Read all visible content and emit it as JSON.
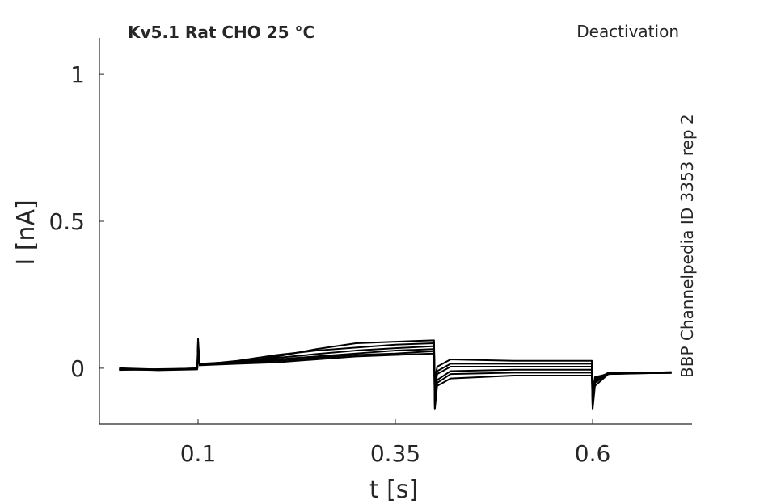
{
  "chart_data": {
    "type": "line",
    "title": "Kv5.1  Rat  CHO  25 °C",
    "annotation": "Deactivation",
    "side_label": "BBP Channelpedia ID 3353 rep 2",
    "x_label": "t [s]",
    "y_label": "I [nA]",
    "xlim": [
      -0.025,
      0.726
    ],
    "ylim": [
      -0.19,
      1.124
    ],
    "xticks": [
      0.1,
      0.35,
      0.6
    ],
    "yticks": [
      0,
      0.5,
      1
    ],
    "grid": false,
    "x": [
      0,
      0.05,
      0.099,
      0.1,
      0.102,
      0.15,
      0.2,
      0.25,
      0.3,
      0.35,
      0.399,
      0.4,
      0.403,
      0.42,
      0.5,
      0.599,
      0.6,
      0.603,
      0.62,
      0.7
    ],
    "series": [
      {
        "color": "#000000",
        "values": [
          -0.002,
          -0.005,
          0,
          0.09,
          0.01,
          0.015,
          0.02,
          0.03,
          0.04,
          0.045,
          0.05,
          -0.14,
          -0.06,
          -0.035,
          -0.025,
          -0.025,
          -0.14,
          -0.06,
          -0.02,
          -0.015
        ]
      },
      {
        "color": "#000000",
        "values": [
          -0.004,
          -0.006,
          -0.002,
          0.1,
          0.012,
          0.018,
          0.025,
          0.035,
          0.045,
          0.05,
          0.058,
          -0.13,
          -0.05,
          -0.02,
          -0.015,
          -0.015,
          -0.13,
          -0.05,
          -0.018,
          -0.016
        ]
      },
      {
        "color": "#000000",
        "values": [
          0,
          -0.004,
          -0.003,
          0.08,
          0.01,
          0.02,
          0.03,
          0.04,
          0.05,
          0.06,
          0.065,
          -0.1,
          -0.04,
          -0.01,
          -0.005,
          -0.005,
          -0.12,
          -0.045,
          -0.015,
          -0.014
        ]
      },
      {
        "color": "#000000",
        "values": [
          -0.006,
          -0.003,
          -0.001,
          0.07,
          0.015,
          0.022,
          0.035,
          0.048,
          0.06,
          0.068,
          0.075,
          -0.08,
          -0.02,
          0.005,
          0.005,
          0.005,
          -0.1,
          -0.04,
          -0.016,
          -0.015
        ]
      },
      {
        "color": "#000000",
        "values": [
          -0.003,
          -0.007,
          -0.004,
          0.06,
          0.012,
          0.025,
          0.045,
          0.06,
          0.07,
          0.08,
          0.085,
          -0.06,
          -0.01,
          0.015,
          0.015,
          0.015,
          -0.09,
          -0.035,
          -0.017,
          -0.016
        ]
      },
      {
        "color": "#000000",
        "values": [
          -0.005,
          -0.004,
          -0.002,
          0.05,
          0.014,
          0.02,
          0.04,
          0.065,
          0.085,
          0.09,
          0.095,
          -0.04,
          0.005,
          0.03,
          0.025,
          0.025,
          -0.08,
          -0.03,
          -0.02,
          -0.013
        ]
      }
    ]
  }
}
